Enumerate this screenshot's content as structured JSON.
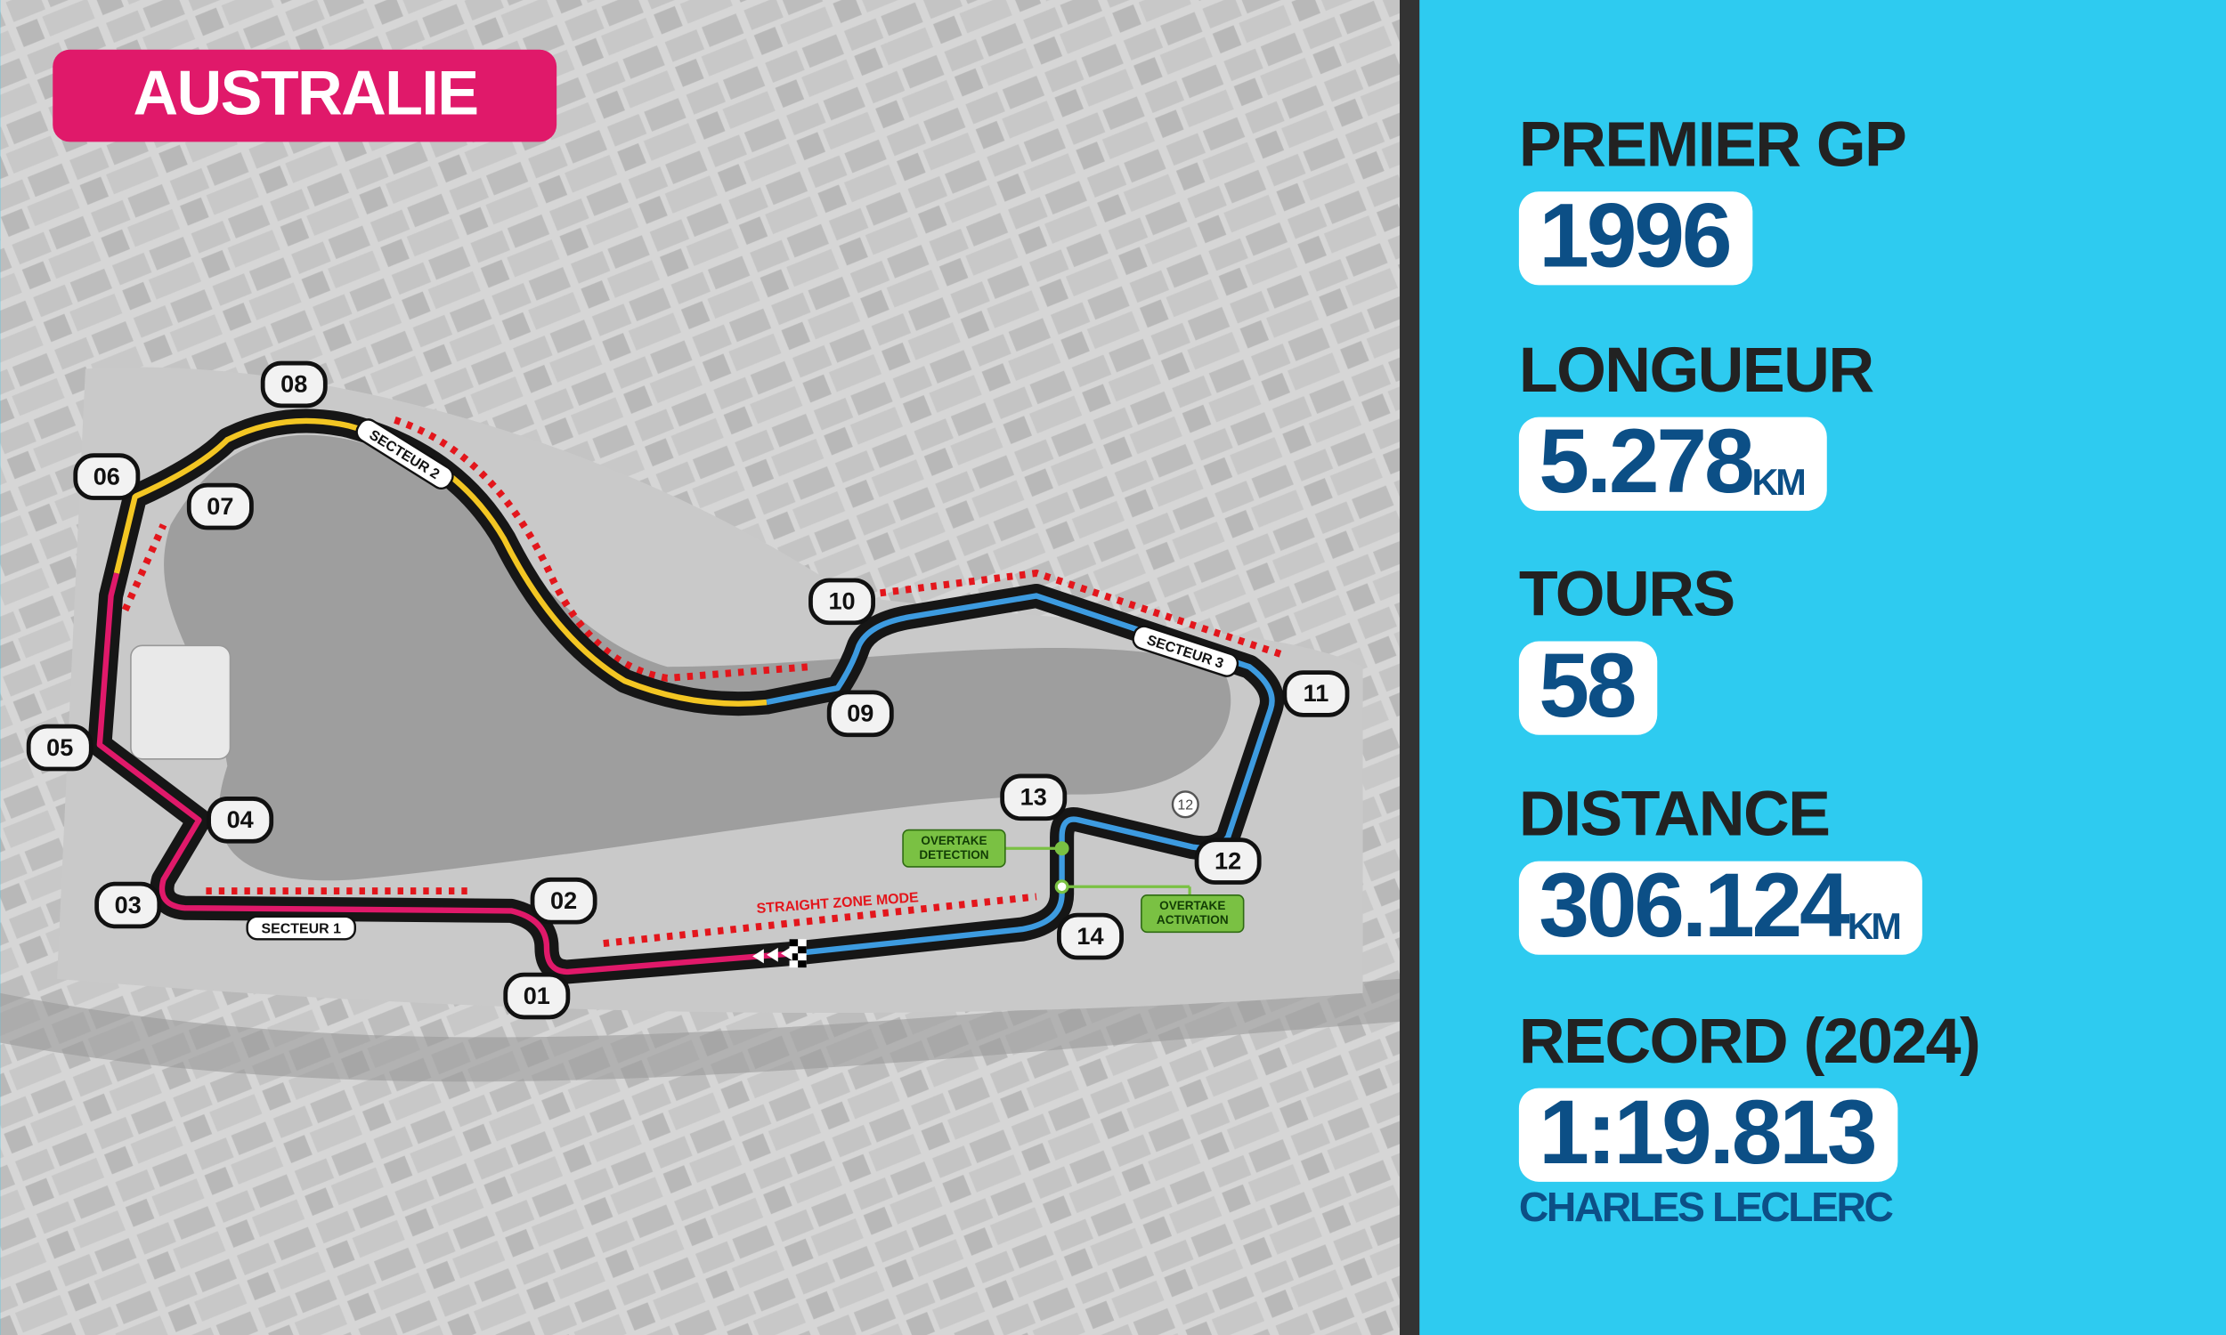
{
  "title": "AUSTRALIE",
  "map": {
    "turns": [
      "01",
      "02",
      "03",
      "04",
      "05",
      "06",
      "07",
      "08",
      "09",
      "10",
      "11",
      "12",
      "13",
      "14"
    ],
    "sectors": [
      "SECTEUR 1",
      "SECTEUR 2",
      "SECTEUR 3"
    ],
    "straight_zone": "STRAIGHT ZONE MODE",
    "overtake_detection": [
      "OVERTAKE",
      "DETECTION"
    ],
    "overtake_activation": [
      "OVERTAKE",
      "ACTIVATION"
    ],
    "marker": "12"
  },
  "stats": [
    {
      "label": "PREMIER GP",
      "value": "1996"
    },
    {
      "label": "LONGUEUR",
      "value": "5.278",
      "unit": "KM"
    },
    {
      "label": "TOURS",
      "value": "58"
    },
    {
      "label": "DISTANCE",
      "value": "306.124",
      "unit": "KM"
    },
    {
      "label": "RECORD (2024)",
      "value": "1:19.813",
      "note": "CHARLES LECLERC"
    }
  ]
}
